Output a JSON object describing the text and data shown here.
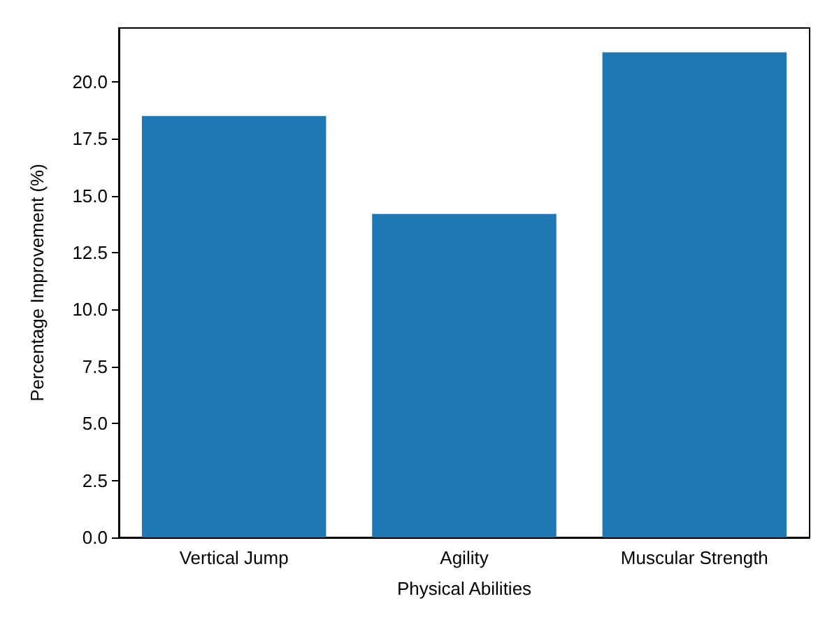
{
  "chart_data": {
    "type": "bar",
    "xlabel": "Physical Abilities",
    "ylabel": "Percentage Improvement (%)",
    "categories": [
      "Vertical Jump",
      "Agility",
      "Muscular Strength"
    ],
    "values": [
      18.5,
      14.2,
      21.3
    ],
    "color": "#1f77b4",
    "ylim": [
      0,
      22.365
    ],
    "yticks": [
      {
        "value": 0,
        "label": "0.0"
      },
      2.5,
      {
        "value": 5,
        "label": "5.0"
      },
      7.5,
      {
        "value": 10,
        "label": "10.0"
      },
      12.5,
      {
        "value": 15,
        "label": "15.0"
      },
      17.5,
      {
        "value": 20,
        "label": "20.0"
      }
    ],
    "grid": false
  }
}
